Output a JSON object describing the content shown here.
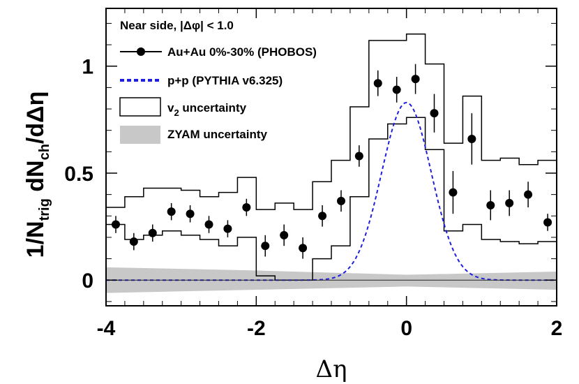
{
  "chart_data": {
    "type": "scatter",
    "title": "Near side, |Δφ| < 1.0",
    "xlabel": "Δη",
    "ylabel": {
      "prefix": "1/N",
      "trig_sub": "trig",
      "middle": " dN",
      "ch_sub": "ch",
      "suffix": "/dΔη"
    },
    "xlim": [
      -4,
      2
    ],
    "ylim": [
      -0.12,
      1.27
    ],
    "x_ticks": [
      -4,
      -2,
      0,
      2
    ],
    "x_tick_labels": [
      "-4",
      "-2",
      "0",
      "2"
    ],
    "y_ticks": [
      0,
      0.5,
      1
    ],
    "y_tick_labels": [
      "0",
      "0.5",
      "1"
    ],
    "grid": false,
    "legend_position": "top-left",
    "legend": {
      "phobos": "Au+Au 0%-30% (PHOBOS)",
      "pythia": "p+p (PYTHIA v6.325)",
      "v2_prefix": "v",
      "v2_sub": "2",
      "v2_suffix": " uncertainty",
      "zyam": "ZYAM uncertainty"
    },
    "series": [
      {
        "name": "Au+Au 0%-30% (PHOBOS)",
        "marker": "circle",
        "x": [
          -3.87,
          -3.63,
          -3.38,
          -3.13,
          -2.88,
          -2.63,
          -2.38,
          -2.13,
          -1.88,
          -1.63,
          -1.38,
          -1.12,
          -0.87,
          -0.63,
          -0.38,
          -0.13,
          0.12,
          0.37,
          0.62,
          0.87,
          1.12,
          1.37,
          1.62,
          1.88
        ],
        "y": [
          0.26,
          0.18,
          0.22,
          0.32,
          0.31,
          0.26,
          0.24,
          0.34,
          0.16,
          0.21,
          0.15,
          0.3,
          0.37,
          0.58,
          0.92,
          0.89,
          0.94,
          0.78,
          0.41,
          0.66,
          0.35,
          0.36,
          0.4,
          0.27
        ],
        "yerr": [
          0.04,
          0.04,
          0.04,
          0.04,
          0.04,
          0.04,
          0.04,
          0.04,
          0.05,
          0.05,
          0.05,
          0.05,
          0.05,
          0.05,
          0.06,
          0.06,
          0.07,
          0.09,
          0.1,
          0.12,
          0.07,
          0.06,
          0.06,
          0.04
        ]
      },
      {
        "name": "p+p (PYTHIA v6.325)",
        "type": "line",
        "style": "dashed",
        "color": "#1f1fdf",
        "gaussian_peak": 0.83,
        "gaussian_center": 0,
        "gaussian_sigma": 0.33,
        "x_range": [
          -4,
          2
        ]
      },
      {
        "name": "v2 uncertainty",
        "type": "step-band",
        "bin_edges": [
          -4.0,
          -3.75,
          -3.5,
          -3.25,
          -3.0,
          -2.75,
          -2.5,
          -2.25,
          -2.0,
          -1.75,
          -1.5,
          -1.25,
          -1.0,
          -0.75,
          -0.5,
          -0.25,
          0.0,
          0.25,
          0.5,
          0.75,
          1.0,
          1.25,
          1.5,
          1.75,
          2.0
        ],
        "upper": [
          0.34,
          0.39,
          0.43,
          0.43,
          0.42,
          0.39,
          0.41,
          0.48,
          0.33,
          0.36,
          0.33,
          0.46,
          0.56,
          0.81,
          1.12,
          1.12,
          1.15,
          1.01,
          0.64,
          0.86,
          0.56,
          0.57,
          0.54,
          0.56
        ],
        "lower": [
          0.26,
          0.19,
          0.21,
          0.23,
          0.21,
          0.19,
          0.16,
          0.2,
          0.02,
          0.0,
          0.0,
          0.1,
          0.16,
          0.39,
          0.66,
          0.73,
          0.76,
          0.61,
          0.23,
          0.26,
          0.19,
          0.18,
          0.17,
          0.18
        ]
      },
      {
        "name": "ZYAM uncertainty",
        "type": "band",
        "color": "#c8c8c8",
        "x": [
          -4,
          -2,
          0,
          2
        ],
        "upper": [
          0.06,
          0.045,
          0.025,
          0.04
        ],
        "lower": [
          -0.06,
          -0.045,
          -0.03,
          -0.045
        ]
      }
    ]
  }
}
